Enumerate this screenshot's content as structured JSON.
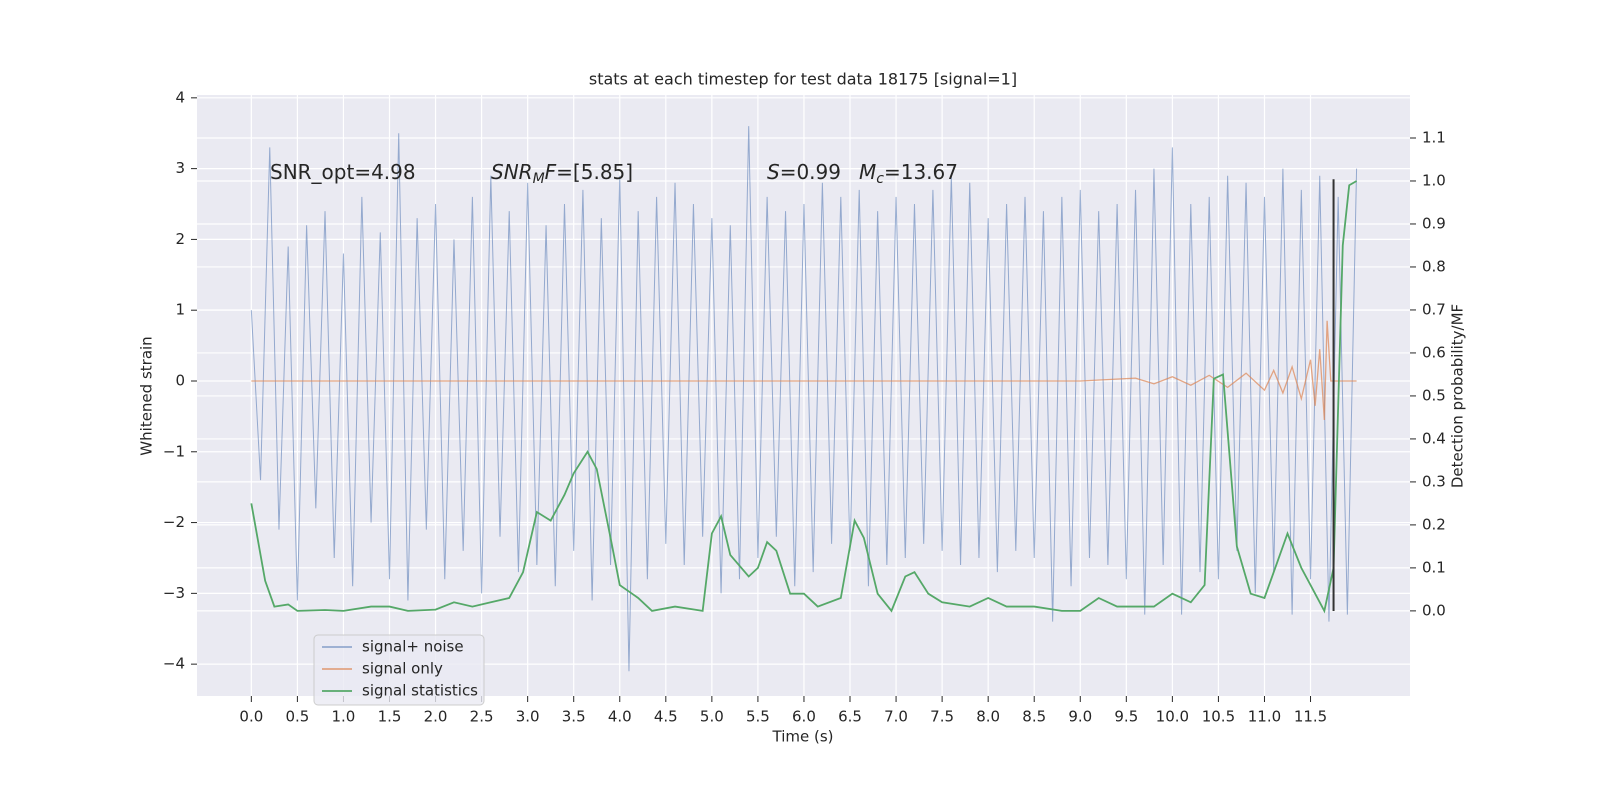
{
  "chart_data": {
    "type": "line",
    "title": "stats at each timestep for test data 18175 [signal=1]",
    "xlabel": "Time (s)",
    "ylabel": "Whitened strain",
    "y2label": "Detection probability/MF",
    "xlim": [
      -0.59,
      12.58
    ],
    "ylim": [
      -4.45,
      4.04
    ],
    "y2lim": [
      -0.198,
      1.2
    ],
    "xticks": [
      {
        "value": 0,
        "label": "0.0"
      },
      0.5,
      {
        "value": 1,
        "label": "1.0"
      },
      1.5,
      {
        "value": 2,
        "label": "2.0"
      },
      2.5,
      {
        "value": 3,
        "label": "3.0"
      },
      3.5,
      {
        "value": 4,
        "label": "4.0"
      },
      4.5,
      {
        "value": 5,
        "label": "5.0"
      },
      5.5,
      {
        "value": 6,
        "label": "6.0"
      },
      6.5,
      {
        "value": 7,
        "label": "7.0"
      },
      7.5,
      {
        "value": 8,
        "label": "8.0"
      },
      8.5,
      {
        "value": 9,
        "label": "9.0"
      },
      9.5,
      {
        "value": 10,
        "label": "10.0"
      },
      10.5,
      {
        "value": 11,
        "label": "11.0"
      },
      11.5
    ],
    "yticks": [
      {
        "value": -4,
        "label": "−4"
      },
      {
        "value": -3,
        "label": "−3"
      },
      {
        "value": -2,
        "label": "−2"
      },
      {
        "value": -1,
        "label": "−1"
      },
      0,
      1,
      2,
      3,
      4
    ],
    "y2ticks": [
      {
        "value": 0,
        "label": "0.0"
      },
      0.1,
      0.2,
      0.3,
      0.4,
      0.5,
      0.6,
      0.7,
      0.8,
      0.9,
      {
        "value": 1,
        "label": "1.0"
      },
      1.1
    ],
    "grid": true,
    "legend": "lower left",
    "series": [
      {
        "name": "signal+ noise",
        "color": "#4c72b0",
        "x": [
          0,
          0.1,
          0.2,
          0.3,
          0.4,
          0.5,
          0.6,
          0.7,
          0.8,
          0.9,
          1,
          1.1,
          1.2,
          1.3,
          1.4,
          1.5,
          1.6,
          1.7,
          1.8,
          1.9,
          2,
          2.1,
          2.2,
          2.3,
          2.4,
          2.5,
          2.6,
          2.7,
          2.8,
          2.9,
          3,
          3.1,
          3.2,
          3.3,
          3.4,
          3.5,
          3.6,
          3.7,
          3.8,
          3.9,
          4,
          4.1,
          4.2,
          4.3,
          4.4,
          4.5,
          4.6,
          4.7,
          4.8,
          4.9,
          5,
          5.1,
          5.2,
          5.3,
          5.4,
          5.5,
          5.6,
          5.7,
          5.8,
          5.9,
          6,
          6.1,
          6.2,
          6.3,
          6.4,
          6.5,
          6.6,
          6.7,
          6.8,
          6.9,
          7,
          7.1,
          7.2,
          7.3,
          7.4,
          7.5,
          7.6,
          7.7,
          7.8,
          7.9,
          8,
          8.1,
          8.2,
          8.3,
          8.4,
          8.5,
          8.6,
          8.7,
          8.8,
          8.9,
          9,
          9.1,
          9.2,
          9.3,
          9.4,
          9.5,
          9.6,
          9.7,
          9.8,
          9.9,
          10,
          10.1,
          10.2,
          10.3,
          10.4,
          10.5,
          10.6,
          10.7,
          10.8,
          10.9,
          11,
          11.1,
          11.2,
          11.3,
          11.4,
          11.5,
          11.6,
          11.7,
          11.8,
          11.9,
          12
        ],
        "values": [
          1.0,
          -1.4,
          3.3,
          -2.1,
          1.9,
          -3.1,
          2.2,
          -1.8,
          2.4,
          -2.5,
          1.8,
          -2.9,
          2.6,
          -2.0,
          2.1,
          -2.8,
          3.5,
          -3.1,
          2.3,
          -2.1,
          2.5,
          -2.8,
          2.0,
          -2.4,
          2.6,
          -3.0,
          2.9,
          -2.2,
          2.4,
          -2.7,
          2.8,
          -2.6,
          2.2,
          -2.9,
          2.5,
          -2.4,
          2.7,
          -3.1,
          2.3,
          -2.6,
          2.9,
          -4.1,
          2.4,
          -2.8,
          2.6,
          -2.3,
          2.8,
          -2.6,
          2.5,
          -2.2,
          2.3,
          -3.0,
          2.2,
          -2.8,
          3.6,
          -2.5,
          2.6,
          -2.2,
          2.4,
          -2.9,
          2.5,
          -2.7,
          2.8,
          -2.3,
          2.6,
          -2.4,
          2.7,
          -2.9,
          2.4,
          -2.6,
          2.6,
          -2.5,
          2.5,
          -2.3,
          2.7,
          -2.4,
          2.9,
          -2.6,
          2.8,
          -2.5,
          2.3,
          -2.7,
          2.5,
          -2.4,
          2.6,
          -2.5,
          2.4,
          -3.4,
          2.6,
          -2.9,
          2.7,
          -2.5,
          2.4,
          -2.6,
          2.5,
          -2.8,
          2.7,
          -3.3,
          3.0,
          -2.6,
          3.3,
          -3.3,
          2.5,
          -2.7,
          2.6,
          -2.8,
          2.9,
          -2.4,
          2.8,
          -3.0,
          2.6,
          -2.7,
          3.0,
          -3.3,
          2.7,
          -2.8,
          2.9,
          -3.4,
          2.6,
          -3.3,
          3.0
        ]
      },
      {
        "name": "signal only",
        "color": "#dd8452",
        "x": [
          0,
          9.0,
          9.6,
          9.8,
          10.0,
          10.2,
          10.4,
          10.6,
          10.8,
          11.0,
          11.1,
          11.2,
          11.3,
          11.4,
          11.5,
          11.55,
          11.6,
          11.65,
          11.68,
          11.72,
          12.0
        ],
        "values": [
          0,
          0,
          0.04,
          -0.04,
          0.06,
          -0.06,
          0.08,
          -0.09,
          0.11,
          -0.13,
          0.15,
          -0.17,
          0.2,
          -0.25,
          0.3,
          -0.35,
          0.45,
          -0.55,
          0.85,
          0,
          0
        ]
      },
      {
        "name": "signal statistics",
        "color": "#55a868",
        "axis": "y2",
        "x": [
          0,
          0.15,
          0.25,
          0.4,
          0.5,
          0.8,
          1.0,
          1.3,
          1.5,
          1.7,
          2.0,
          2.2,
          2.4,
          2.6,
          2.8,
          2.95,
          3.1,
          3.25,
          3.4,
          3.5,
          3.65,
          3.75,
          3.9,
          4.0,
          4.2,
          4.35,
          4.6,
          4.9,
          5.0,
          5.1,
          5.2,
          5.4,
          5.5,
          5.6,
          5.7,
          5.85,
          6.0,
          6.15,
          6.4,
          6.55,
          6.65,
          6.8,
          6.95,
          7.1,
          7.2,
          7.35,
          7.5,
          7.8,
          8.0,
          8.2,
          8.5,
          8.8,
          9.0,
          9.2,
          9.4,
          9.6,
          9.8,
          10.0,
          10.2,
          10.35,
          10.45,
          10.55,
          10.7,
          10.85,
          11.0,
          11.15,
          11.25,
          11.4,
          11.5,
          11.65,
          11.75,
          11.85,
          11.92,
          12.0
        ],
        "values": [
          0.25,
          0.07,
          0.01,
          0.015,
          0.0,
          0.002,
          0.0,
          0.01,
          0.01,
          0.0,
          0.003,
          0.02,
          0.01,
          0.02,
          0.03,
          0.09,
          0.23,
          0.21,
          0.27,
          0.32,
          0.37,
          0.33,
          0.17,
          0.06,
          0.03,
          0.0,
          0.01,
          0.0,
          0.18,
          0.22,
          0.13,
          0.08,
          0.1,
          0.16,
          0.14,
          0.04,
          0.04,
          0.01,
          0.03,
          0.21,
          0.17,
          0.04,
          0.0,
          0.08,
          0.09,
          0.04,
          0.02,
          0.01,
          0.03,
          0.01,
          0.01,
          0.0,
          0.0,
          0.03,
          0.01,
          0.01,
          0.01,
          0.04,
          0.02,
          0.06,
          0.54,
          0.55,
          0.15,
          0.04,
          0.03,
          0.12,
          0.18,
          0.1,
          0.06,
          0.0,
          0.1,
          0.85,
          0.99,
          1.0
        ]
      }
    ],
    "vline": {
      "x": 11.75,
      "ymin": -3.25,
      "ymax": 2.85,
      "color": "#333333"
    },
    "annotations": [
      {
        "parts": [
          {
            "text": "SNR_opt=4.98"
          }
        ]
      },
      {
        "parts": [
          {
            "text": "SNR",
            "italic": true
          },
          {
            "text": "M",
            "italic": true,
            "sub": true
          },
          {
            "text": "F",
            "italic": true
          },
          {
            "text": "=[5.85]"
          }
        ]
      },
      {
        "parts": [
          {
            "text": "S",
            "italic": true
          },
          {
            "text": "=0.99"
          }
        ]
      },
      {
        "parts": [
          {
            "text": "M",
            "italic": true
          },
          {
            "text": "c",
            "italic": true,
            "sub": true
          },
          {
            "text": "=13.67"
          }
        ]
      }
    ]
  }
}
